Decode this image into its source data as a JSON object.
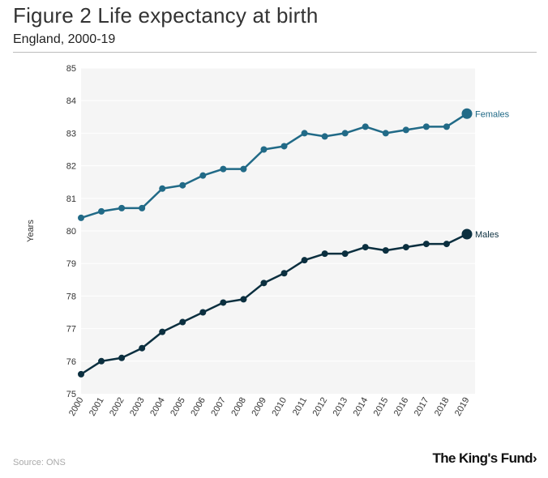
{
  "header": {
    "title": "Figure 2 Life expectancy at birth",
    "subtitle": "England, 2000-19"
  },
  "footer": {
    "source": "Source: ONS",
    "brand": "The King's Fund",
    "brand_chevron": "›"
  },
  "chart_data": {
    "type": "line",
    "title": "Figure 2 Life expectancy at birth",
    "subtitle": "England, 2000-19",
    "xlabel": "",
    "ylabel": "Years",
    "ylim": [
      75,
      85
    ],
    "yticks": [
      75,
      76,
      77,
      78,
      79,
      80,
      81,
      82,
      83,
      84,
      85
    ],
    "grid": true,
    "categories": [
      "2000",
      "2001",
      "2002",
      "2003",
      "2004",
      "2005",
      "2006",
      "2007",
      "2008",
      "2009",
      "2010",
      "2011",
      "2012",
      "2013",
      "2014",
      "2015",
      "2016",
      "2017",
      "2018",
      "2019"
    ],
    "series": [
      {
        "name": "Females",
        "color": "#216a87",
        "values": [
          80.4,
          80.6,
          80.7,
          80.7,
          81.3,
          81.4,
          81.7,
          81.9,
          81.9,
          82.5,
          82.6,
          83.0,
          82.9,
          83.0,
          83.2,
          83.0,
          83.1,
          83.2,
          83.2,
          83.6
        ]
      },
      {
        "name": "Males",
        "color": "#0b2f3f",
        "values": [
          75.6,
          76.0,
          76.1,
          76.4,
          76.9,
          77.2,
          77.5,
          77.8,
          77.9,
          78.4,
          78.7,
          79.1,
          79.3,
          79.3,
          79.5,
          79.4,
          79.5,
          79.6,
          79.6,
          79.9
        ]
      }
    ]
  }
}
